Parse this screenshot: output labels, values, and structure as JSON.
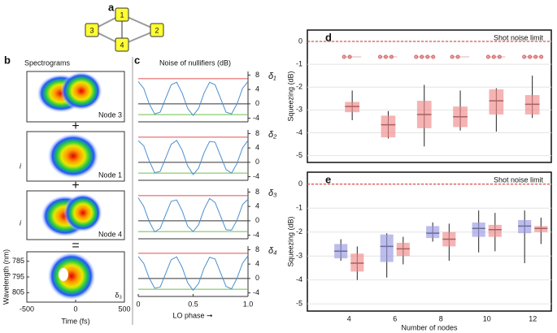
{
  "chart_data": [
    {
      "type": "graph",
      "label": "a",
      "nodes": [
        {
          "label": "1"
        },
        {
          "label": "3"
        },
        {
          "label": "2"
        },
        {
          "label": "4"
        }
      ]
    },
    {
      "type": "spectrogram",
      "label": "b",
      "title": "Spectrograms",
      "panel_labels": [
        "Node 3",
        "Node 1",
        "Node 4",
        "δ₃"
      ],
      "operators": [
        "+",
        "+",
        "="
      ],
      "side_labels": [
        "i",
        "i"
      ],
      "xlabel": "Time (fs)",
      "ylabel": "Wavelength (nm)",
      "xlim": [
        -500,
        500
      ],
      "xticks": [
        -500,
        0,
        500
      ],
      "ylim": [
        780,
        810
      ],
      "yticks": [
        785,
        795,
        805
      ]
    },
    {
      "type": "line",
      "label": "c",
      "title": "Noise of nullifiers (dB)",
      "ylabel": "δ₁",
      "ylim": [
        -5,
        9
      ],
      "yticks": [
        8,
        4,
        0,
        -4
      ],
      "xlim": [
        0,
        1
      ],
      "color": "#4a8fcf",
      "hlines": [
        {
          "value": 7,
          "color": "#e05050"
        },
        {
          "value": 0,
          "color": "#333333"
        },
        {
          "value": -3,
          "color": "#6cbf4a"
        }
      ],
      "x": [
        0,
        0.05,
        0.1,
        0.15,
        0.2,
        0.25,
        0.3,
        0.35,
        0.4,
        0.45,
        0.5,
        0.55,
        0.6,
        0.65,
        0.7,
        0.75,
        0.8,
        0.85,
        0.9,
        0.95,
        1
      ],
      "values": [
        6.2,
        4.3,
        0.0,
        -2.8,
        -2.3,
        1.5,
        5.3,
        6.0,
        3.0,
        -1.3,
        -3.2,
        -1.3,
        3.0,
        6.0,
        5.3,
        1.5,
        -2.3,
        -2.8,
        0.0,
        4.3,
        6.2
      ]
    },
    {
      "type": "line",
      "ylabel": "δ₂",
      "ylim": [
        -5,
        9
      ],
      "yticks": [
        8,
        4,
        0,
        -4
      ],
      "xlim": [
        0,
        1
      ],
      "color": "#4a8fcf",
      "hlines": [
        {
          "value": 7,
          "color": "#e05050"
        },
        {
          "value": 0,
          "color": "#333333"
        },
        {
          "value": -3,
          "color": "#6cbf4a"
        }
      ],
      "x": [
        0,
        0.05,
        0.1,
        0.15,
        0.2,
        0.25,
        0.3,
        0.35,
        0.4,
        0.45,
        0.5,
        0.55,
        0.6,
        0.65,
        0.7,
        0.75,
        0.8,
        0.85,
        0.9,
        0.95,
        1
      ],
      "values": [
        6.0,
        4.6,
        0.4,
        -2.9,
        -2.5,
        1.2,
        5.0,
        6.1,
        3.4,
        -1.0,
        -3.4,
        -1.6,
        2.7,
        5.8,
        5.6,
        1.8,
        -2.0,
        -3.0,
        -0.3,
        4.0,
        6.1
      ]
    },
    {
      "type": "line",
      "ylabel": "δ₃",
      "ylim": [
        -5,
        9
      ],
      "yticks": [
        8,
        4,
        0,
        -4
      ],
      "xlim": [
        0,
        1
      ],
      "color": "#4a8fcf",
      "hlines": [
        {
          "value": 7,
          "color": "#e05050"
        },
        {
          "value": 0,
          "color": "#333333"
        },
        {
          "value": -3,
          "color": "#6cbf4a"
        }
      ],
      "x": [
        0,
        0.05,
        0.1,
        0.15,
        0.2,
        0.25,
        0.3,
        0.35,
        0.4,
        0.45,
        0.5,
        0.55,
        0.6,
        0.65,
        0.7,
        0.75,
        0.8,
        0.85,
        0.9,
        0.95,
        1
      ],
      "values": [
        6.4,
        4.0,
        -0.2,
        -3.1,
        -2.1,
        1.7,
        5.4,
        5.8,
        2.8,
        -1.5,
        -3.0,
        -1.1,
        3.2,
        6.2,
        5.1,
        1.3,
        -2.5,
        -2.6,
        0.2,
        4.5,
        6.0
      ]
    },
    {
      "type": "line",
      "ylabel": "δ₄",
      "ylim": [
        -5,
        9
      ],
      "yticks": [
        8,
        4,
        0,
        -4
      ],
      "xlim": [
        0,
        1
      ],
      "xticks": [
        0,
        0.5,
        {
          "value": 1,
          "label": "1.0"
        }
      ],
      "xlabel": "LO phase ➞",
      "color": "#4a8fcf",
      "hlines": [
        {
          "value": 7,
          "color": "#e05050"
        },
        {
          "value": 0,
          "color": "#333333"
        },
        {
          "value": -3,
          "color": "#6cbf4a"
        }
      ],
      "x": [
        0,
        0.05,
        0.1,
        0.15,
        0.2,
        0.25,
        0.3,
        0.35,
        0.4,
        0.45,
        0.5,
        0.55,
        0.6,
        0.65,
        0.7,
        0.75,
        0.8,
        0.85,
        0.9,
        0.95,
        1
      ],
      "values": [
        6.1,
        4.2,
        0.1,
        -2.7,
        -2.4,
        1.4,
        5.2,
        6.0,
        3.1,
        -1.2,
        -3.3,
        -1.4,
        2.9,
        5.9,
        5.4,
        1.6,
        -2.2,
        -2.9,
        0.1,
        4.2,
        6.3
      ]
    },
    {
      "type": "box",
      "label": "d",
      "ylabel": "Squeezing (dB)",
      "annotation": "Shot noise limit",
      "reference": {
        "value": 0,
        "color": "#e02020"
      },
      "ylim": [
        -5.3,
        0.5
      ],
      "yticks": [
        0,
        -1,
        -2,
        -3,
        -4,
        -5
      ],
      "categories": [
        null,
        null,
        null,
        null,
        null,
        null
      ],
      "series": [
        {
          "color": "#f08a8a",
          "whisker_high": [
            -2.15,
            -3.05,
            -1.9,
            -2.15,
            -2.05,
            -1.5
          ],
          "q3": [
            -2.65,
            -3.25,
            -2.6,
            -2.85,
            -2.1,
            -2.35
          ],
          "median": [
            -2.85,
            -3.65,
            -3.2,
            -3.3,
            -2.6,
            -2.75
          ],
          "q1": [
            -3.1,
            -4.2,
            -3.8,
            -3.75,
            -3.2,
            -3.2
          ],
          "whisker_low": [
            -3.45,
            -4.25,
            -4.6,
            -3.9,
            -3.95,
            -3.35
          ]
        }
      ]
    },
    {
      "type": "box",
      "label": "e",
      "ylabel": "Squeezing (dB)",
      "xlabel": "Number of nodes",
      "annotation": "Shot noise limit",
      "reference": {
        "value": 0,
        "color": "#e02020"
      },
      "ylim": [
        -5.3,
        0.5
      ],
      "yticks": [
        0,
        -1,
        -2,
        -3,
        -4,
        -5
      ],
      "categories": [
        "4",
        "6",
        "8",
        "10",
        "12"
      ],
      "series": [
        {
          "color": "#9a9ae0",
          "whisker_high": [
            -2.3,
            -2.05,
            -1.6,
            -1.1,
            -1.1
          ],
          "q3": [
            -2.5,
            -2.1,
            -1.75,
            -1.6,
            -1.5
          ],
          "median": [
            -2.8,
            -2.6,
            -2.05,
            -1.85,
            -1.75
          ],
          "q1": [
            -3.1,
            -3.25,
            -2.25,
            -2.2,
            -2.05
          ],
          "whisker_low": [
            -3.2,
            -3.9,
            -2.4,
            -2.85,
            -3.3
          ]
        },
        {
          "color": "#f08a8a",
          "whisker_high": [
            -2.6,
            -2.2,
            -1.65,
            -1.2,
            -1.4
          ],
          "q3": [
            -2.9,
            -2.45,
            -2.0,
            -1.7,
            -1.75
          ],
          "median": [
            -3.3,
            -2.7,
            -2.3,
            -1.9,
            -1.85
          ],
          "q1": [
            -3.65,
            -3.0,
            -2.6,
            -2.2,
            -2.0
          ],
          "whisker_low": [
            -4.0,
            -3.35,
            -3.2,
            -2.8,
            -2.5
          ]
        }
      ]
    }
  ]
}
